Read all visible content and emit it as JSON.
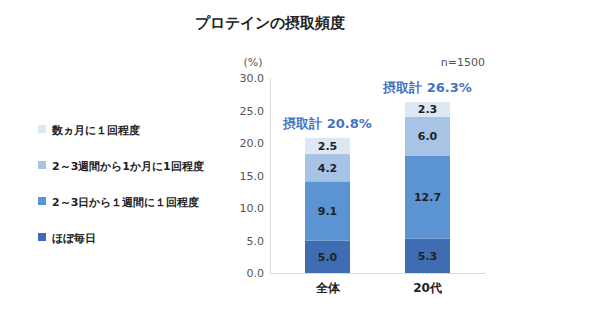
{
  "chart_data": {
    "type": "bar",
    "title": "プロテインの摂取頻度",
    "y_label": "(%)",
    "sample_size_label": "n=1500",
    "annotations": [
      "摂取計 20.8%",
      "摂取計 26.3%"
    ],
    "categories": [
      "全体",
      "20代"
    ],
    "series": [
      {
        "name": "ほぼ毎日",
        "color": "#3f6db3",
        "values": [
          5.0,
          5.3
        ],
        "value_labels": [
          "5.0",
          "5.3"
        ]
      },
      {
        "name": "2～3日から１週間に１回程度",
        "color": "#5b93d3",
        "values": [
          9.1,
          12.7
        ],
        "value_labels": [
          "9.1",
          "12.7"
        ]
      },
      {
        "name": "2～3週間から1か月に1回程度",
        "color": "#a7c4e6",
        "values": [
          4.2,
          6.0
        ],
        "value_labels": [
          "4.2",
          "6.0"
        ]
      },
      {
        "name": "数ヵ月に１回程度",
        "color": "#dde8f4",
        "values": [
          2.5,
          2.3
        ],
        "value_labels": [
          "2.5",
          "2.3"
        ]
      }
    ],
    "stacked": true,
    "data_labels": true,
    "legend": "left",
    "grid": false,
    "ylim": [
      0,
      30
    ],
    "yticks": [
      {
        "value": 0,
        "label": "0.0"
      },
      {
        "value": 5,
        "label": "5.0"
      },
      {
        "value": 10,
        "label": "10.0"
      },
      {
        "value": 15,
        "label": "15.0"
      },
      {
        "value": 20,
        "label": "20.0"
      },
      {
        "value": 25,
        "label": "25.0"
      },
      {
        "value": 30,
        "label": "30.0"
      }
    ]
  }
}
